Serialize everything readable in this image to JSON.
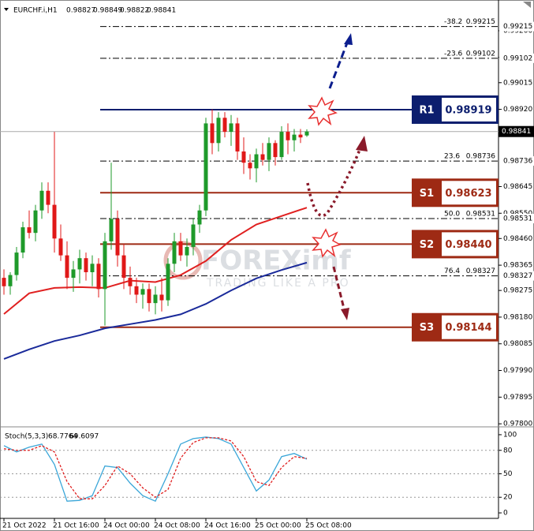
{
  "chart_data": {
    "type": "candlestick",
    "symbol": "EURCHF.i,H1",
    "categories": [
      "21 Oct 2022",
      null,
      null,
      null,
      null,
      null,
      null,
      null,
      "21 Oct 16:00",
      null,
      null,
      null,
      null,
      null,
      null,
      null,
      "24 Oct 00:00",
      null,
      null,
      null,
      null,
      null,
      null,
      null,
      "24 Oct 08:00",
      null,
      null,
      null,
      null,
      null,
      null,
      null,
      "24 Oct 16:00",
      null,
      null,
      null,
      null,
      null,
      null,
      null,
      "25 Oct 00:00",
      null,
      null,
      null,
      null,
      null,
      null,
      null,
      "25 Oct 08:00"
    ],
    "candles": {
      "open": [
        0.9832,
        0.9829,
        0.9833,
        0.9841,
        0.985,
        0.9848,
        0.9856,
        0.9863,
        0.9858,
        0.9846,
        0.984,
        0.9832,
        0.9835,
        0.9839,
        0.9834,
        0.9837,
        0.9828,
        0.9845,
        0.9853,
        0.984,
        0.9832,
        0.9829,
        0.9826,
        0.9828,
        0.9823,
        0.9826,
        0.9824,
        0.9837,
        0.9845,
        0.984,
        0.9843,
        0.9851,
        0.9856,
        0.9887,
        0.988,
        0.9889,
        0.9884,
        0.9887,
        0.9877,
        0.9873,
        0.9871,
        0.9876,
        0.9874,
        0.988,
        0.9875,
        0.9884,
        0.9881,
        0.9883,
        0.98827
      ],
      "high": [
        0.9835,
        0.9834,
        0.9843,
        0.9852,
        0.9856,
        0.9858,
        0.9866,
        0.9866,
        0.9884,
        0.9851,
        0.9845,
        0.9838,
        0.9842,
        0.9841,
        0.984,
        0.9839,
        0.9848,
        0.9873,
        0.9856,
        0.9844,
        0.9836,
        0.9832,
        0.983,
        0.983,
        0.9829,
        0.9832,
        0.9839,
        0.9848,
        0.9848,
        0.9846,
        0.9853,
        0.9858,
        0.9889,
        0.9892,
        0.9891,
        0.9891,
        0.989,
        0.9889,
        0.9882,
        0.9876,
        0.9878,
        0.988,
        0.9882,
        0.9881,
        0.9886,
        0.9887,
        0.9885,
        0.9885,
        0.98849
      ],
      "low": [
        0.9826,
        0.9826,
        0.9831,
        0.9839,
        0.9846,
        0.9845,
        0.9853,
        0.9855,
        0.9841,
        0.9838,
        0.9828,
        0.9827,
        0.983,
        0.9831,
        0.9829,
        0.9825,
        0.9815,
        0.9842,
        0.9836,
        0.9828,
        0.9826,
        0.9823,
        0.9821,
        0.982,
        0.9819,
        0.982,
        0.9822,
        0.9834,
        0.9838,
        0.9836,
        0.984,
        0.9848,
        0.9854,
        0.9876,
        0.9877,
        0.9882,
        0.9879,
        0.9874,
        0.9869,
        0.9867,
        0.9866,
        0.9872,
        0.987,
        0.9872,
        0.9874,
        0.9876,
        0.9877,
        0.988,
        0.98822
      ],
      "close": [
        0.9829,
        0.9833,
        0.9841,
        0.985,
        0.9848,
        0.9856,
        0.9863,
        0.9858,
        0.9846,
        0.984,
        0.9832,
        0.9835,
        0.9839,
        0.9834,
        0.9837,
        0.9828,
        0.9845,
        0.9853,
        0.984,
        0.9832,
        0.9829,
        0.9826,
        0.9828,
        0.9823,
        0.9826,
        0.9824,
        0.9837,
        0.9845,
        0.984,
        0.9843,
        0.9851,
        0.9856,
        0.9887,
        0.988,
        0.9889,
        0.9884,
        0.9887,
        0.9877,
        0.9873,
        0.9871,
        0.9876,
        0.9874,
        0.988,
        0.9875,
        0.9884,
        0.9881,
        0.9883,
        0.9882,
        0.98841
      ],
      "up_color": "#1e9a2a",
      "down_color": "#e01818"
    },
    "moving_averages": [
      {
        "color": "#e02020",
        "x": [
          0,
          4,
          8,
          12,
          16,
          20,
          24,
          28,
          32,
          36,
          40,
          44,
          48
        ],
        "values": [
          0.98191,
          0.98265,
          0.98284,
          0.98287,
          0.98284,
          0.9831,
          0.98305,
          0.9833,
          0.9838,
          0.98455,
          0.9851,
          0.9854,
          0.9857
        ]
      },
      {
        "color": "#1a2a9a",
        "x": [
          0,
          4,
          8,
          12,
          16,
          20,
          24,
          28,
          32,
          36,
          40,
          44,
          48
        ],
        "values": [
          0.98031,
          0.98065,
          0.98095,
          0.98115,
          0.9814,
          0.98155,
          0.9817,
          0.9819,
          0.98227,
          0.98275,
          0.98318,
          0.98348,
          0.98374
        ]
      }
    ],
    "ylim": [
      0.97792,
      0.99287
    ],
    "yticks": [
      {
        "value": 0.992,
        "label": "0.99200"
      },
      0.99105,
      0.99015,
      {
        "value": 0.9892,
        "label": "0.98920"
      },
      0.98645,
      {
        "value": 0.9855,
        "label": "0.98550"
      },
      {
        "value": 0.9846,
        "label": "0.98460"
      },
      0.98365,
      0.98275,
      {
        "value": 0.9818,
        "label": "0.98180"
      },
      0.98085,
      {
        "value": 0.9799,
        "label": "0.97990"
      },
      0.97895,
      {
        "value": 0.978,
        "label": "0.97800"
      }
    ],
    "levels": [
      {
        "name": "R1",
        "value": 0.98919,
        "color": "#0c1e6e"
      },
      {
        "name": "S1",
        "value": 0.98623,
        "color": "#9e2a14"
      },
      {
        "name": "S2",
        "value": 0.9844,
        "value_label": "0.98440",
        "color": "#9e2a14"
      },
      {
        "name": "S3",
        "value": 0.98144,
        "color": "#9e2a14"
      }
    ],
    "fibonacci": [
      {
        "level": -38.2,
        "price": 0.99215
      },
      {
        "level": -23.6,
        "price": 0.99102
      },
      {
        "level": 23.6,
        "price": 0.98736
      },
      {
        "level": 50,
        "level_label": "50.0",
        "price": 0.98531
      },
      {
        "level": 76.4,
        "price": 0.98327
      }
    ],
    "watermark": {
      "brand": "FOREXimf",
      "tagline": "TRADING LIKE A PRO"
    },
    "stochastic": {
      "title": "Stoch(5,3,3)",
      "ylim": [
        -5,
        106
      ],
      "yticks": [
        0,
        20,
        50,
        80,
        100
      ],
      "x": [
        0,
        2,
        4,
        6,
        8,
        10,
        12,
        14,
        16,
        18,
        20,
        22,
        24,
        26,
        28,
        30,
        32,
        34,
        36,
        38,
        40,
        42,
        44,
        46,
        48
      ],
      "series": [
        {
          "color": "#3aa6d8",
          "values": [
            86,
            78,
            84,
            88,
            62,
            15,
            16,
            22,
            60,
            58,
            38,
            22,
            15,
            50,
            88,
            95,
            97,
            95,
            88,
            58,
            28,
            42,
            72,
            76,
            68.7764
          ]
        },
        {
          "color": "#e02020",
          "values": [
            82,
            80,
            80,
            86,
            78,
            40,
            18,
            18,
            35,
            60,
            50,
            32,
            20,
            30,
            70,
            90,
            96,
            96,
            92,
            72,
            40,
            35,
            58,
            72,
            69.6097
          ]
        }
      ]
    }
  }
}
